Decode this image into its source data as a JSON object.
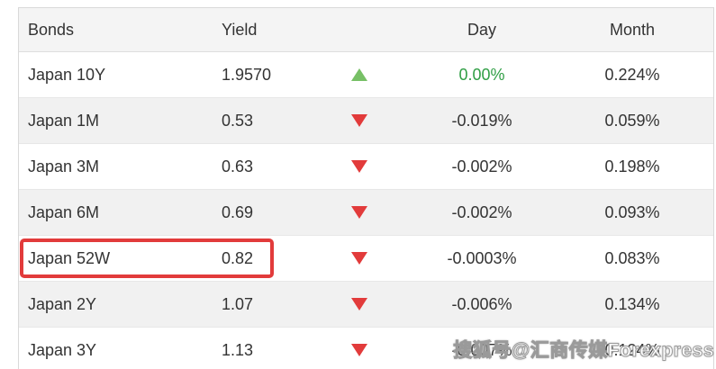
{
  "widget": {
    "title": "bond-yields-table"
  },
  "table": {
    "header": {
      "bonds": "Bonds",
      "yield": "Yield",
      "arrow": "",
      "day": "Day",
      "month": "Month"
    },
    "rows": [
      {
        "name": "Japan 10Y",
        "yield": "1.9570",
        "direction": "up",
        "day": "0.00%",
        "day_positive": true,
        "month": "0.224%",
        "highlighted": false
      },
      {
        "name": "Japan 1M",
        "yield": "0.53",
        "direction": "down",
        "day": "-0.019%",
        "day_positive": false,
        "month": "0.059%",
        "highlighted": false
      },
      {
        "name": "Japan 3M",
        "yield": "0.63",
        "direction": "down",
        "day": "-0.002%",
        "day_positive": false,
        "month": "0.198%",
        "highlighted": false
      },
      {
        "name": "Japan 6M",
        "yield": "0.69",
        "direction": "down",
        "day": "-0.002%",
        "day_positive": false,
        "month": "0.093%",
        "highlighted": false
      },
      {
        "name": "Japan 52W",
        "yield": "0.82",
        "direction": "down",
        "day": "-0.0003%",
        "day_positive": false,
        "month": "0.083%",
        "highlighted": true
      },
      {
        "name": "Japan 2Y",
        "yield": "1.07",
        "direction": "down",
        "day": "-0.006%",
        "day_positive": false,
        "month": "0.134%",
        "highlighted": false
      },
      {
        "name": "Japan 3Y",
        "yield": "1.13",
        "direction": "down",
        "day": "-0.007%",
        "day_positive": false,
        "month": "0.124%",
        "highlighted": false
      }
    ]
  },
  "watermark": {
    "text": "搜狐号@汇商传媒Forexpress"
  },
  "colors": {
    "up_arrow_green": "#77c066",
    "down_arrow_red": "#e23b3b",
    "day_positive_green": "#2f9e44",
    "highlight_box_red": "#e23b3b",
    "header_bg": "#f4f4f4",
    "alt_row_bg": "#f1f1f1",
    "text": "#333333"
  }
}
